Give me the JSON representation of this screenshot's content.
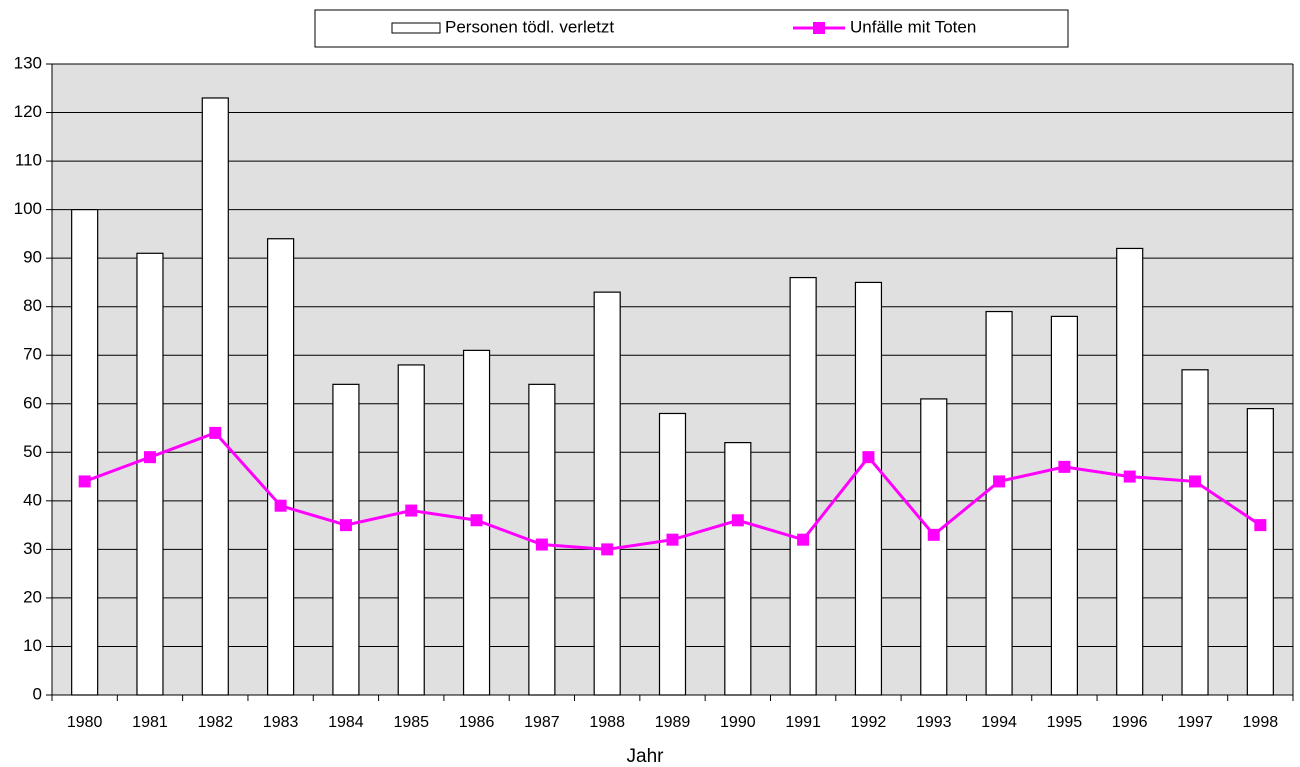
{
  "chart_data": {
    "type": "bar",
    "x_label": "Jahr",
    "categories": [
      "1980",
      "1981",
      "1982",
      "1983",
      "1984",
      "1985",
      "1986",
      "1987",
      "1988",
      "1989",
      "1990",
      "1991",
      "1992",
      "1993",
      "1994",
      "1995",
      "1996",
      "1997",
      "1998"
    ],
    "series": [
      {
        "name": "Personen tödl. verletzt",
        "type": "bar",
        "color": "#ffffff",
        "values": [
          100,
          91,
          123,
          94,
          64,
          68,
          71,
          64,
          83,
          58,
          52,
          86,
          85,
          61,
          79,
          78,
          92,
          67,
          59
        ]
      },
      {
        "name": "Unfälle mit Toten",
        "type": "line",
        "color": "#ff00ff",
        "values": [
          44,
          49,
          54,
          39,
          35,
          38,
          36,
          31,
          30,
          32,
          36,
          32,
          49,
          33,
          44,
          47,
          45,
          44,
          35
        ]
      }
    ],
    "ylim": [
      0,
      130
    ],
    "yticks": [
      0,
      10,
      20,
      30,
      40,
      50,
      60,
      70,
      80,
      90,
      100,
      110,
      120,
      130
    ],
    "grid": true,
    "plot_background": "#e0e0e0",
    "legend": "top"
  }
}
